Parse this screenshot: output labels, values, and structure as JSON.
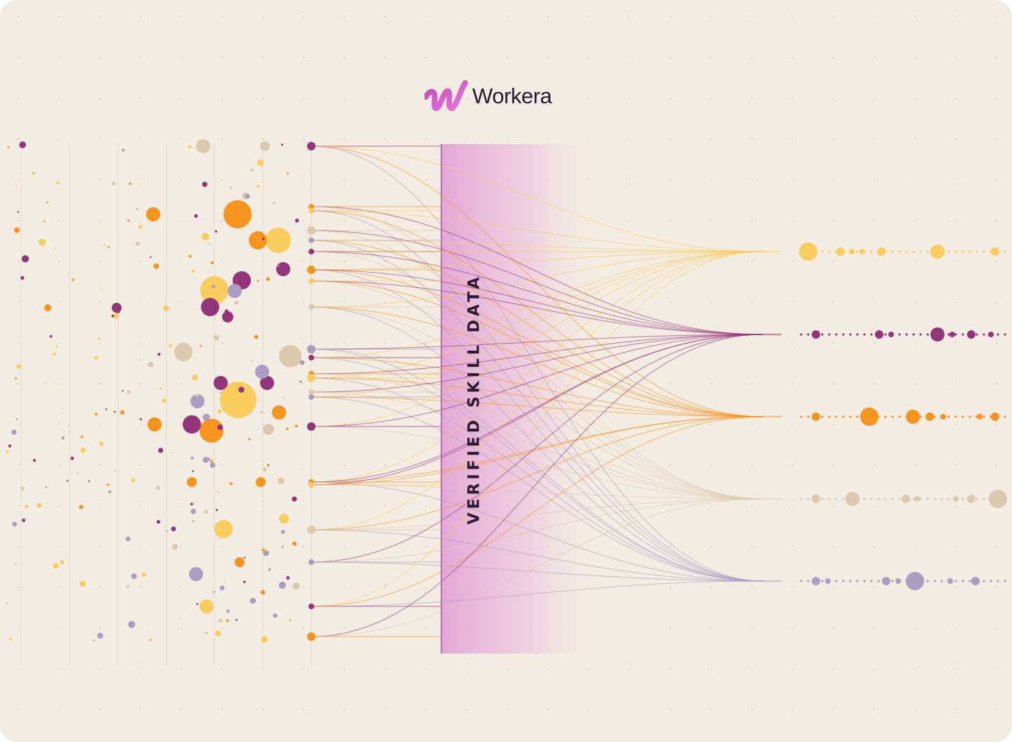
{
  "brand": {
    "name": "Workera",
    "logo_icon": "workera-w-icon",
    "colors": {
      "background": "#f3ece2",
      "purple": "#93357a",
      "orange": "#f7941d",
      "yellow": "#f9cc5b",
      "tan": "#dcc8ad",
      "lavender": "#ab9cc2",
      "band": "#e2a4d6",
      "logo_gradient": [
        "#c04ab6",
        "#e878d6"
      ]
    }
  },
  "band": {
    "label": "VERIFIED SKILL DATA"
  }
}
